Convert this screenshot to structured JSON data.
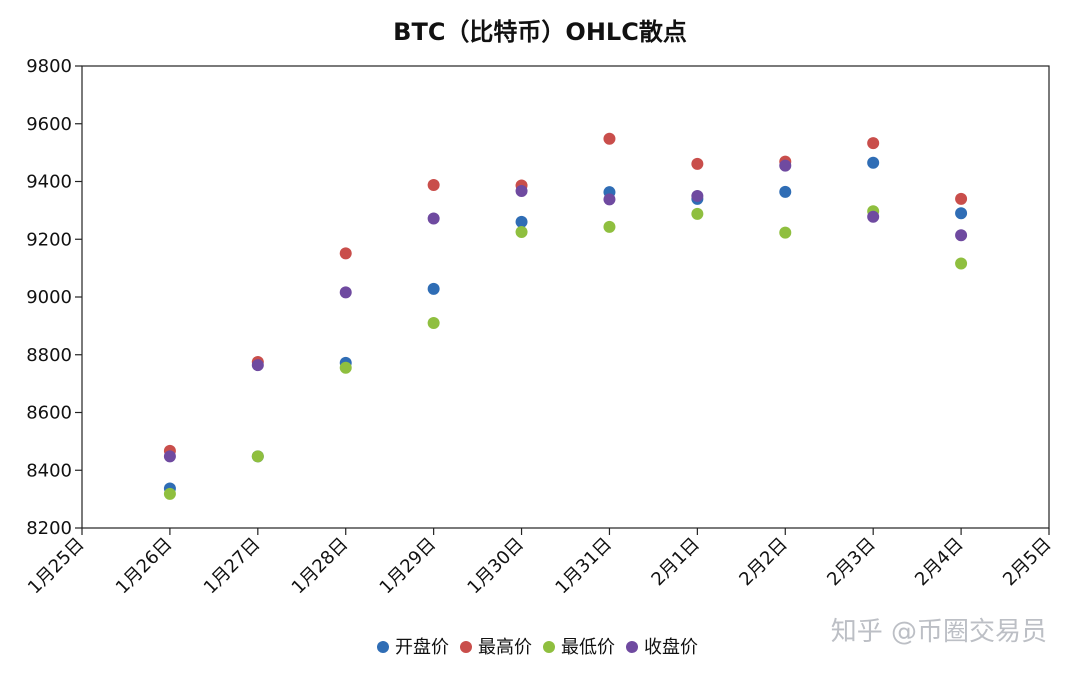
{
  "watermark": "知乎 @币圈交易员",
  "colors": {
    "open": "#2f6db5",
    "high": "#c94e4b",
    "low": "#8fbf3f",
    "close": "#6f4aa0"
  },
  "chart_data": {
    "type": "scatter",
    "title": "BTC（比特币）OHLC散点",
    "xlabel": "",
    "ylabel": "",
    "x": [
      "1月26日",
      "1月27日",
      "1月28日",
      "1月29日",
      "1月30日",
      "1月31日",
      "2月1日",
      "2月2日",
      "2月3日",
      "2月4日"
    ],
    "x_ticks": [
      "1月25日",
      "1月26日",
      "1月27日",
      "1月28日",
      "1月29日",
      "1月30日",
      "1月31日",
      "2月1日",
      "2月2日",
      "2月3日",
      "2月4日",
      "2月5日"
    ],
    "ylim": [
      8200,
      9800
    ],
    "y_ticks": [
      8200,
      8400,
      8600,
      8800,
      9000,
      9200,
      9400,
      9600,
      9800
    ],
    "grid": false,
    "legend_position": "bottom",
    "series": [
      {
        "name": "开盘价",
        "color_key": "open",
        "values": [
          8337,
          8448,
          8772,
          9028,
          9260,
          9363,
          9340,
          9364,
          9465,
          9290
        ]
      },
      {
        "name": "最高价",
        "color_key": "high",
        "values": [
          8467,
          8775,
          9151,
          9388,
          9386,
          9548,
          9461,
          9469,
          9533,
          9340
        ]
      },
      {
        "name": "最低价",
        "color_key": "low",
        "values": [
          8318,
          8448,
          8755,
          8910,
          9225,
          9243,
          9288,
          9223,
          9297,
          9116
        ]
      },
      {
        "name": "收盘价",
        "color_key": "close",
        "values": [
          8448,
          8764,
          9016,
          9272,
          9367,
          9338,
          9350,
          9455,
          9278,
          9214
        ]
      }
    ]
  }
}
